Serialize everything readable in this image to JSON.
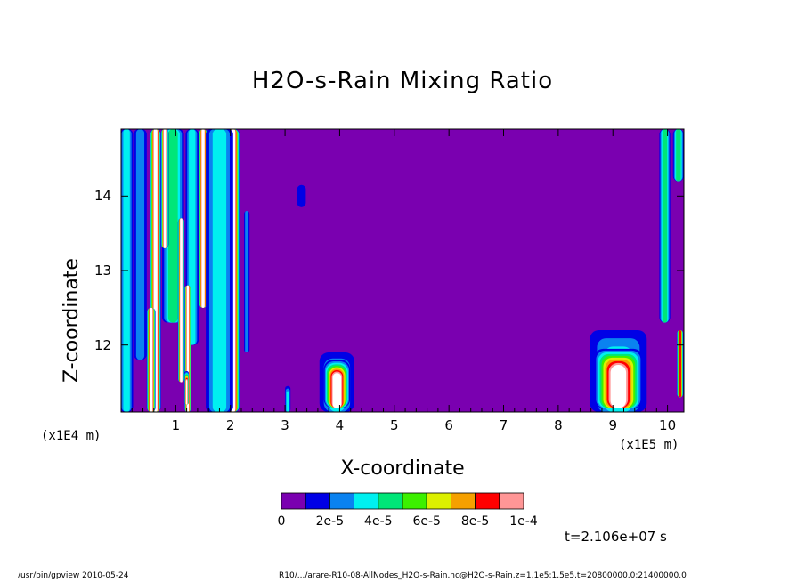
{
  "chart_data": {
    "type": "heatmap",
    "title": "H2O-s-Rain Mixing Ratio",
    "xlabel": "X-coordinate",
    "ylabel": "Z-coordinate",
    "x_scale_label": "(x1E5 m)",
    "y_scale_label": "(x1E4 m)",
    "xlim": [
      0,
      10.3
    ],
    "ylim": [
      11.1,
      14.9
    ],
    "x_ticks": [
      1,
      2,
      3,
      4,
      5,
      6,
      7,
      8,
      9,
      10
    ],
    "y_ticks": [
      12,
      13,
      14
    ],
    "background_value": 0,
    "colorbar": {
      "colors": [
        "#7a00b0",
        "#0000e6",
        "#0a82f0",
        "#00f0f0",
        "#00e678",
        "#3cf000",
        "#dcf000",
        "#f5a000",
        "#ff0000",
        "#ff9696"
      ],
      "labels": [
        "0",
        "2e-5",
        "4e-5",
        "6e-5",
        "8e-5",
        "1e-4"
      ],
      "above_max_color": "#ffffff"
    },
    "features": [
      {
        "shape": "column",
        "x_center": 0.1,
        "half_width": 0.12,
        "z_bottom": 11.1,
        "z_top": 14.9,
        "level": 3
      },
      {
        "shape": "column",
        "x_center": 0.35,
        "half_width": 0.12,
        "z_bottom": 11.8,
        "z_top": 14.9,
        "level": 2
      },
      {
        "shape": "column",
        "x_center": 0.63,
        "half_width": 0.1,
        "z_bottom": 11.1,
        "z_top": 14.9,
        "level": 10
      },
      {
        "shape": "column",
        "x_center": 0.95,
        "half_width": 0.2,
        "z_bottom": 12.3,
        "z_top": 14.9,
        "level": 4
      },
      {
        "shape": "column",
        "x_center": 1.3,
        "half_width": 0.12,
        "z_bottom": 12.0,
        "z_top": 14.9,
        "level": 3
      },
      {
        "shape": "column",
        "x_center": 1.85,
        "half_width": 0.08,
        "z_bottom": 11.3,
        "z_top": 14.9,
        "level": 10
      },
      {
        "shape": "column",
        "x_center": 1.1,
        "half_width": 0.06,
        "z_bottom": 11.5,
        "z_top": 13.7,
        "level": 10
      },
      {
        "shape": "column",
        "x_center": 1.5,
        "half_width": 0.08,
        "z_bottom": 12.5,
        "z_top": 14.9,
        "level": 10
      },
      {
        "shape": "column",
        "x_center": 2.05,
        "half_width": 0.12,
        "z_bottom": 11.1,
        "z_top": 14.9,
        "level": 10
      },
      {
        "shape": "column",
        "x_center": 1.8,
        "half_width": 0.25,
        "z_bottom": 11.1,
        "z_top": 14.9,
        "level": 3
      },
      {
        "shape": "column",
        "x_center": 1.22,
        "half_width": 0.06,
        "z_bottom": 11.1,
        "z_top": 12.8,
        "level": 10
      },
      {
        "shape": "column",
        "x_center": 0.55,
        "half_width": 0.08,
        "z_bottom": 11.1,
        "z_top": 12.5,
        "level": 10
      },
      {
        "shape": "column",
        "x_center": 0.8,
        "half_width": 0.07,
        "z_bottom": 13.3,
        "z_top": 14.9,
        "level": 10
      },
      {
        "shape": "column",
        "x_center": 2.3,
        "half_width": 0.05,
        "z_bottom": 11.9,
        "z_top": 13.8,
        "level": 2
      },
      {
        "shape": "blob",
        "x_center": 3.3,
        "half_width": 0.08,
        "z_bottom": 13.85,
        "z_top": 14.15,
        "level": 1
      },
      {
        "shape": "blob",
        "x_center": 3.05,
        "half_width": 0.05,
        "z_bottom": 11.1,
        "z_top": 11.45,
        "level": 3
      },
      {
        "shape": "blob",
        "x_center": 1.2,
        "half_width": 0.04,
        "z_bottom": 11.2,
        "z_top": 11.65,
        "level": 10
      },
      {
        "shape": "cell",
        "x_center": 3.95,
        "half_width": 0.32,
        "z_bottom": 11.1,
        "z_top": 11.9,
        "level": 3
      },
      {
        "shape": "cell",
        "x_center": 3.95,
        "half_width": 0.24,
        "z_bottom": 11.15,
        "z_top": 11.8,
        "level": 10
      },
      {
        "shape": "cell",
        "x_center": 9.1,
        "half_width": 0.52,
        "z_bottom": 11.1,
        "z_top": 12.2,
        "level": 3
      },
      {
        "shape": "cell",
        "x_center": 9.1,
        "half_width": 0.44,
        "z_bottom": 11.15,
        "z_top": 11.95,
        "level": 10
      },
      {
        "shape": "column",
        "x_center": 9.95,
        "half_width": 0.1,
        "z_bottom": 12.3,
        "z_top": 14.9,
        "level": 4
      },
      {
        "shape": "column",
        "x_center": 10.2,
        "half_width": 0.1,
        "z_bottom": 14.2,
        "z_top": 14.9,
        "level": 4
      },
      {
        "shape": "column",
        "x_center": 10.23,
        "half_width": 0.06,
        "z_bottom": 11.3,
        "z_top": 12.2,
        "level": 8
      }
    ]
  },
  "time_label": "t=2.106e+07 s",
  "footer": {
    "left": "/usr/bin/gpview   2010-05-24",
    "right": "R10/.../arare-R10-08-AllNodes_H2O-s-Rain.nc@H2O-s-Rain,z=1.1e5:1.5e5,t=20800000.0:21400000.0"
  }
}
